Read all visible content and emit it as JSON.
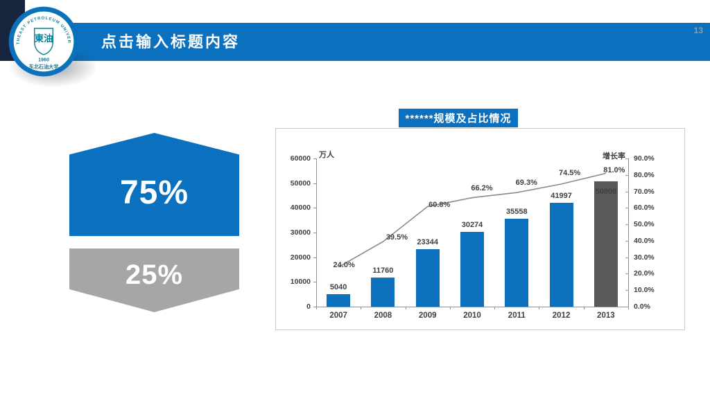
{
  "slide": {
    "page_number": "13",
    "header_title": "点击输入标题内容",
    "logo": {
      "ring_text_top": "NORTHEAST PETROLEUM UNIVERSITY",
      "ring_text_bottom": "东北石油大学",
      "center_text": "東油",
      "founded_year": "1960"
    },
    "infographic": {
      "primary_value": "75%",
      "secondary_value": "25%"
    },
    "chart_title": "******规模及占比情况"
  },
  "colors": {
    "accent_blue": "#0b71be",
    "bar_blue": "#0d70bc",
    "last_bar_gray": "#595959",
    "shape_gray": "#a6a6a6",
    "navy_block": "#16243d",
    "line_gray": "#8a8a8a",
    "axis_text": "#3f3f3f",
    "chart_border": "#c9c9c9",
    "page_number_gray": "#8b9da9"
  },
  "chart_data": {
    "type": "bar",
    "subtype": "bar+line combo, dual axis",
    "title": "******规模及占比情况",
    "categories": [
      "2007",
      "2008",
      "2009",
      "2010",
      "2011",
      "2012",
      "2013"
    ],
    "series": [
      {
        "name": "规模",
        "type": "bar",
        "axis": "left",
        "unit": "万人",
        "values": [
          5040,
          11760,
          23344,
          30274,
          35558,
          41997,
          50806
        ],
        "labels": [
          "5040",
          "11760",
          "23344",
          "30274",
          "35558",
          "41997",
          "50806"
        ]
      },
      {
        "name": "增长率",
        "type": "line",
        "axis": "right",
        "values": [
          24.0,
          39.5,
          60.8,
          66.2,
          69.3,
          74.5,
          81.0
        ],
        "labels": [
          "24.0%",
          "39.5%",
          "60.8%",
          "66.2%",
          "69.3%",
          "74.5%",
          "81.0%"
        ]
      }
    ],
    "left_axis": {
      "title": "万人",
      "min": 0,
      "max": 60000,
      "step": 10000,
      "tick_labels": [
        "0",
        "10000",
        "20000",
        "30000",
        "40000",
        "50000",
        "60000"
      ]
    },
    "right_axis": {
      "title": "增长率",
      "min": 0,
      "max": 90,
      "step": 10,
      "tick_labels": [
        "0.0%",
        "10.0%",
        "20.0%",
        "30.0%",
        "40.0%",
        "50.0%",
        "60.0%",
        "70.0%",
        "80.0%",
        "90.0%"
      ]
    },
    "grid": false,
    "legend": "none",
    "bar_colors": [
      "#0d70bc",
      "#0d70bc",
      "#0d70bc",
      "#0d70bc",
      "#0d70bc",
      "#0d70bc",
      "#595959"
    ]
  }
}
